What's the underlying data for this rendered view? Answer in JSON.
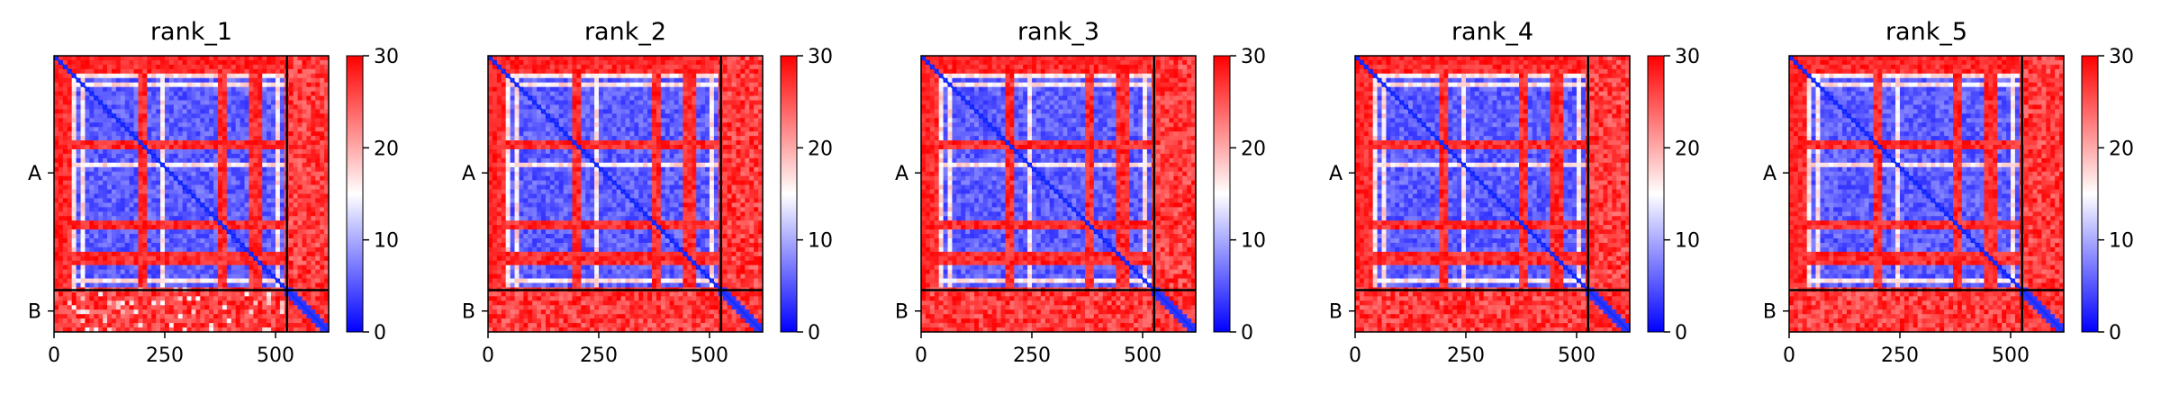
{
  "chart_data": [
    {
      "type": "heatmap",
      "title": "rank_1",
      "chains": [
        "A",
        "B"
      ],
      "chain_boundary": 526,
      "total_length": 620,
      "xticks": [
        0,
        250,
        500
      ],
      "xtick_labels": [
        "0",
        "250",
        "500"
      ],
      "ytick_labels": [
        "A",
        "B"
      ],
      "colorbar": {
        "min": 0,
        "max": 30,
        "ticks": [
          0,
          10,
          20,
          30
        ],
        "tick_labels": [
          "0",
          "10",
          "20",
          "30"
        ],
        "colormap": "bwr"
      }
    },
    {
      "type": "heatmap",
      "title": "rank_2",
      "chains": [
        "A",
        "B"
      ],
      "chain_boundary": 526,
      "total_length": 620,
      "xticks": [
        0,
        250,
        500
      ],
      "xtick_labels": [
        "0",
        "250",
        "500"
      ],
      "ytick_labels": [
        "A",
        "B"
      ],
      "colorbar": {
        "min": 0,
        "max": 30,
        "ticks": [
          0,
          10,
          20,
          30
        ],
        "tick_labels": [
          "0",
          "10",
          "20",
          "30"
        ],
        "colormap": "bwr"
      }
    },
    {
      "type": "heatmap",
      "title": "rank_3",
      "chains": [
        "A",
        "B"
      ],
      "chain_boundary": 526,
      "total_length": 620,
      "xticks": [
        0,
        250,
        500
      ],
      "xtick_labels": [
        "0",
        "250",
        "500"
      ],
      "ytick_labels": [
        "A",
        "B"
      ],
      "colorbar": {
        "min": 0,
        "max": 30,
        "ticks": [
          0,
          10,
          20,
          30
        ],
        "tick_labels": [
          "0",
          "10",
          "20",
          "30"
        ],
        "colormap": "bwr"
      }
    },
    {
      "type": "heatmap",
      "title": "rank_4",
      "chains": [
        "A",
        "B"
      ],
      "chain_boundary": 526,
      "total_length": 620,
      "xticks": [
        0,
        250,
        500
      ],
      "xtick_labels": [
        "0",
        "250",
        "500"
      ],
      "ytick_labels": [
        "A",
        "B"
      ],
      "colorbar": {
        "min": 0,
        "max": 30,
        "ticks": [
          0,
          10,
          20,
          30
        ],
        "tick_labels": [
          "0",
          "10",
          "20",
          "30"
        ],
        "colormap": "bwr"
      }
    },
    {
      "type": "heatmap",
      "title": "rank_5",
      "chains": [
        "A",
        "B"
      ],
      "chain_boundary": 526,
      "total_length": 620,
      "xticks": [
        0,
        250,
        500
      ],
      "xtick_labels": [
        "0",
        "250",
        "500"
      ],
      "ytick_labels": [
        "A",
        "B"
      ],
      "colorbar": {
        "min": 0,
        "max": 30,
        "ticks": [
          0,
          10,
          20,
          30
        ],
        "tick_labels": [
          "0",
          "10",
          "20",
          "30"
        ],
        "colormap": "bwr"
      }
    }
  ],
  "colors": {
    "low": "#0000ff",
    "mid": "#ffffff",
    "high": "#ff0000",
    "frame": "#000000"
  }
}
